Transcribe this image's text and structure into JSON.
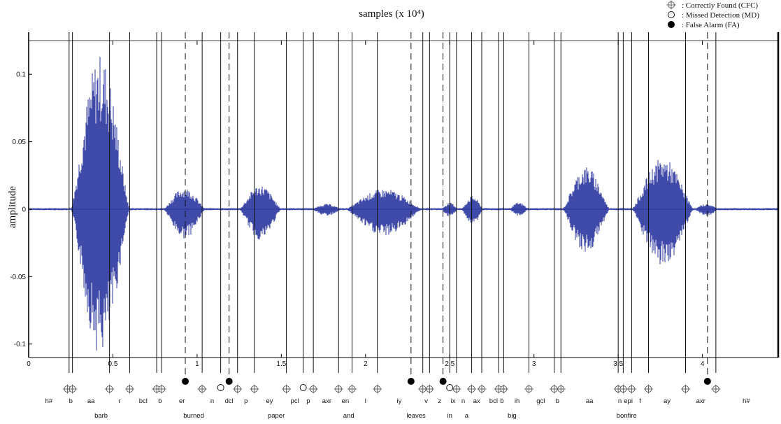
{
  "chart_data": {
    "type": "line",
    "title": "samples (x 10⁴)",
    "xlabel": "samples (x 10⁴)",
    "ylabel": "amplitude",
    "xlim": [
      0,
      4.45
    ],
    "ylim": [
      -0.11,
      0.125
    ],
    "x_ticks": [
      {
        "v": 0,
        "label": "0"
      },
      {
        "v": 0.5,
        "label": "0.5"
      },
      {
        "v": 1,
        "label": "1"
      },
      {
        "v": 1.5,
        "label": "1.5"
      },
      {
        "v": 2,
        "label": "2"
      },
      {
        "v": 2.5,
        "label": "2.5"
      },
      {
        "v": 3,
        "label": "3"
      },
      {
        "v": 3.5,
        "label": "3.5"
      },
      {
        "v": 4,
        "label": "4"
      }
    ],
    "y_ticks": [
      {
        "v": 0.1,
        "label": "0.1"
      },
      {
        "v": 0.05,
        "label": "0.05"
      },
      {
        "v": 0,
        "label": "0"
      },
      {
        "v": -0.05,
        "label": "-0.05"
      },
      {
        "v": -0.1,
        "label": "-0.1"
      }
    ],
    "waveform_color": "#2b37a0",
    "waveform_segments": [
      {
        "start": 0.25,
        "end": 0.6,
        "peak": 0.115,
        "trough": -0.108
      },
      {
        "start": 0.8,
        "end": 1.05,
        "peak": 0.016,
        "trough": -0.022
      },
      {
        "start": 1.25,
        "end": 1.5,
        "peak": 0.018,
        "trough": -0.023
      },
      {
        "start": 1.68,
        "end": 1.86,
        "peak": 0.004,
        "trough": -0.005
      },
      {
        "start": 1.88,
        "end": 2.34,
        "peak": 0.015,
        "trough": -0.02
      },
      {
        "start": 2.45,
        "end": 2.55,
        "peak": 0.005,
        "trough": -0.006
      },
      {
        "start": 2.57,
        "end": 2.7,
        "peak": 0.01,
        "trough": -0.012
      },
      {
        "start": 2.85,
        "end": 2.97,
        "peak": 0.005,
        "trough": -0.005
      },
      {
        "start": 3.17,
        "end": 3.45,
        "peak": 0.032,
        "trough": -0.033
      },
      {
        "start": 3.58,
        "end": 3.95,
        "peak": 0.038,
        "trough": -0.043
      },
      {
        "start": 3.95,
        "end": 4.1,
        "peak": 0.004,
        "trough": -0.005
      }
    ],
    "solid_boundaries": [
      0.24,
      0.26,
      0.48,
      0.6,
      0.76,
      0.79,
      1.03,
      1.14,
      1.24,
      1.34,
      1.53,
      1.63,
      1.69,
      1.84,
      1.92,
      2.07,
      2.34,
      2.38,
      2.5,
      2.54,
      2.63,
      2.69,
      2.79,
      2.82,
      2.97,
      3.12,
      3.16,
      3.5,
      3.53,
      3.58,
      3.68,
      3.9,
      4.08
    ],
    "dashed_boundaries": [
      0.93,
      1.19,
      2.27,
      2.46,
      4.03
    ],
    "markers": [
      {
        "x": 0.23,
        "kind": "CFC"
      },
      {
        "x": 0.26,
        "kind": "CFC"
      },
      {
        "x": 0.48,
        "kind": "CFC"
      },
      {
        "x": 0.6,
        "kind": "CFC"
      },
      {
        "x": 0.76,
        "kind": "CFC"
      },
      {
        "x": 0.79,
        "kind": "CFC"
      },
      {
        "x": 0.93,
        "kind": "FA"
      },
      {
        "x": 1.03,
        "kind": "CFC"
      },
      {
        "x": 1.14,
        "kind": "MD"
      },
      {
        "x": 1.19,
        "kind": "FA"
      },
      {
        "x": 1.24,
        "kind": "CFC"
      },
      {
        "x": 1.34,
        "kind": "CFC"
      },
      {
        "x": 1.53,
        "kind": "CFC"
      },
      {
        "x": 1.63,
        "kind": "MD"
      },
      {
        "x": 1.69,
        "kind": "CFC"
      },
      {
        "x": 1.84,
        "kind": "CFC"
      },
      {
        "x": 1.92,
        "kind": "CFC"
      },
      {
        "x": 2.07,
        "kind": "CFC"
      },
      {
        "x": 2.27,
        "kind": "FA"
      },
      {
        "x": 2.34,
        "kind": "CFC"
      },
      {
        "x": 2.38,
        "kind": "CFC"
      },
      {
        "x": 2.46,
        "kind": "FA"
      },
      {
        "x": 2.5,
        "kind": "MD"
      },
      {
        "x": 2.54,
        "kind": "CFC"
      },
      {
        "x": 2.63,
        "kind": "CFC"
      },
      {
        "x": 2.69,
        "kind": "CFC"
      },
      {
        "x": 2.79,
        "kind": "CFC"
      },
      {
        "x": 2.82,
        "kind": "CFC"
      },
      {
        "x": 2.97,
        "kind": "CFC"
      },
      {
        "x": 3.12,
        "kind": "CFC"
      },
      {
        "x": 3.16,
        "kind": "CFC"
      },
      {
        "x": 3.5,
        "kind": "CFC"
      },
      {
        "x": 3.53,
        "kind": "CFC"
      },
      {
        "x": 3.58,
        "kind": "CFC"
      },
      {
        "x": 3.68,
        "kind": "CFC"
      },
      {
        "x": 3.9,
        "kind": "CFC"
      },
      {
        "x": 4.03,
        "kind": "FA"
      },
      {
        "x": 4.08,
        "kind": "CFC"
      }
    ],
    "phonemes": [
      {
        "x": 0.12,
        "label": "h#"
      },
      {
        "x": 0.25,
        "label": "b"
      },
      {
        "x": 0.37,
        "label": "aa"
      },
      {
        "x": 0.54,
        "label": "r"
      },
      {
        "x": 0.68,
        "label": "bcl"
      },
      {
        "x": 0.78,
        "label": "b"
      },
      {
        "x": 0.91,
        "label": "er"
      },
      {
        "x": 1.09,
        "label": "n"
      },
      {
        "x": 1.19,
        "label": "dcl"
      },
      {
        "x": 1.29,
        "label": "p"
      },
      {
        "x": 1.43,
        "label": "ey"
      },
      {
        "x": 1.58,
        "label": "pcl"
      },
      {
        "x": 1.66,
        "label": "p"
      },
      {
        "x": 1.77,
        "label": "axr"
      },
      {
        "x": 1.88,
        "label": "en"
      },
      {
        "x": 2.0,
        "label": "l"
      },
      {
        "x": 2.2,
        "label": "iy"
      },
      {
        "x": 2.36,
        "label": "v"
      },
      {
        "x": 2.44,
        "label": "z"
      },
      {
        "x": 2.52,
        "label": "ix"
      },
      {
        "x": 2.58,
        "label": "n"
      },
      {
        "x": 2.66,
        "label": "ax"
      },
      {
        "x": 2.76,
        "label": "bcl"
      },
      {
        "x": 2.81,
        "label": "b"
      },
      {
        "x": 2.9,
        "label": "ih"
      },
      {
        "x": 3.04,
        "label": "gcl"
      },
      {
        "x": 3.14,
        "label": "b"
      },
      {
        "x": 3.33,
        "label": "aa"
      },
      {
        "x": 3.51,
        "label": "n"
      },
      {
        "x": 3.56,
        "label": "epi"
      },
      {
        "x": 3.63,
        "label": "f"
      },
      {
        "x": 3.79,
        "label": "ay"
      },
      {
        "x": 3.99,
        "label": "axr"
      },
      {
        "x": 4.26,
        "label": "h#"
      }
    ],
    "words": [
      {
        "x": 0.43,
        "label": "barb"
      },
      {
        "x": 0.98,
        "label": "burned"
      },
      {
        "x": 1.47,
        "label": "paper"
      },
      {
        "x": 1.9,
        "label": "and"
      },
      {
        "x": 2.3,
        "label": "leaves"
      },
      {
        "x": 2.5,
        "label": "in"
      },
      {
        "x": 2.6,
        "label": "a"
      },
      {
        "x": 2.87,
        "label": "big"
      },
      {
        "x": 3.55,
        "label": "bonfire"
      }
    ],
    "legend": [
      {
        "kind": "CFC",
        "label": ": Correctly Found (CFC)"
      },
      {
        "kind": "MD",
        "label": ": Missed Detection (MD)"
      },
      {
        "kind": "FA",
        "label": ": False Alarm (FA)"
      }
    ]
  }
}
